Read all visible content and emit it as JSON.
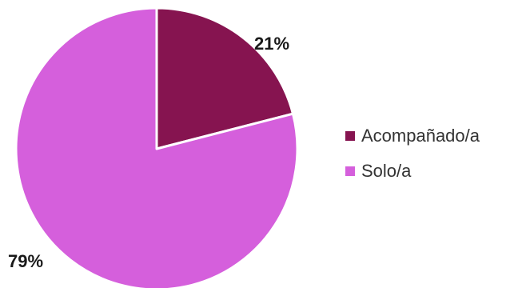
{
  "chart_data": {
    "type": "pie",
    "categories": [
      "Acompañado/a",
      "Solo/a"
    ],
    "values": [
      21,
      79
    ],
    "labels": [
      "21%",
      "79%"
    ],
    "colors": [
      "#861450",
      "#d55fdc"
    ],
    "start_angle": "12 o'clock",
    "direction": "clockwise",
    "legend_position": "right",
    "title": "",
    "xlabel": "",
    "ylabel": ""
  }
}
